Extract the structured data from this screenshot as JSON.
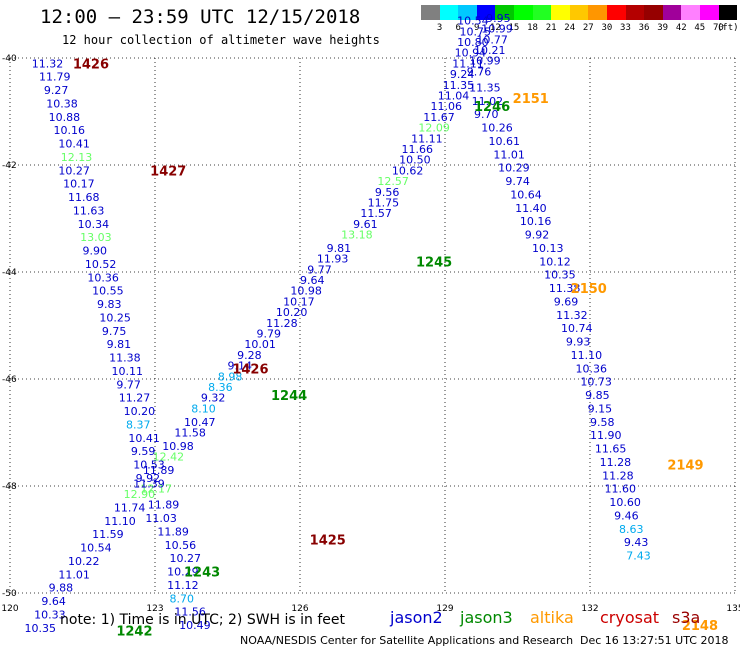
{
  "header": {
    "title": "12:00 – 23:59 UTC 12/15/2018",
    "subtitle": "12 hour collection of altimeter wave heights"
  },
  "scale": {
    "colors": [
      "#808080",
      "#00ffff",
      "#00c8ff",
      "#0000ff",
      "#00c800",
      "#00ff00",
      "#22ff22",
      "#ffff00",
      "#ffc800",
      "#ff9600",
      "#ff0000",
      "#b40000",
      "#960000",
      "#a0009a",
      "#ff80ff",
      "#ff00ff",
      "#000000"
    ],
    "labels": [
      "3",
      "6",
      "9",
      "12",
      "15",
      "18",
      "21",
      "24",
      "27",
      "30",
      "33",
      "36",
      "39",
      "42",
      "45",
      "70",
      "(ft)"
    ]
  },
  "axes": {
    "lon_ticks": [
      "120",
      "123",
      "126",
      "129",
      "132",
      "135"
    ],
    "lat_ticks": [
      "-40",
      "-42",
      "-44",
      "-46",
      "-48",
      "-50"
    ]
  },
  "legend": {
    "note": "note: 1) Time is in UTC; 2) SWH is in feet",
    "satellites": [
      {
        "name": "jason2",
        "color": "#0000cc"
      },
      {
        "name": "jason3",
        "color": "#008800"
      },
      {
        "name": "altika",
        "color": "#ff9900"
      },
      {
        "name": "cryosat",
        "color": "#cc0000"
      },
      {
        "name": "s3a",
        "color": "#990000"
      }
    ]
  },
  "track_colors": {
    "jason2": "#0000cc",
    "jason3": "#008800",
    "altika": "#ff9900",
    "cryosat": "#cc0000",
    "s3a": "#880000",
    "light-green": "#66ff66",
    "cyan": "#00aaee"
  },
  "tracks": {
    "s3a_west": {
      "times": [
        {
          "t": "1426",
          "lat": -40.1
        },
        {
          "t": "1427",
          "lat": -42.1
        },
        {
          "t": "1426",
          "lat": -45.8
        },
        {
          "t": "1425",
          "lat": -49.0
        }
      ],
      "values": [
        {
          "v": "11.32",
          "lon": 120.45,
          "lat": -40.1,
          "c": "jason2"
        },
        {
          "v": "11.79",
          "lon": 120.6,
          "lat": -40.35,
          "c": "jason2"
        },
        {
          "v": "9.27",
          "lon": 120.7,
          "lat": -40.6,
          "c": "jason2"
        },
        {
          "v": "10.38",
          "lon": 120.75,
          "lat": -40.85,
          "c": "jason2"
        },
        {
          "v": "10.88",
          "lon": 120.8,
          "lat": -41.1,
          "c": "jason2"
        },
        {
          "v": "10.16",
          "lon": 120.9,
          "lat": -41.35,
          "c": "jason2"
        },
        {
          "v": "10.41",
          "lon": 121.0,
          "lat": -41.6,
          "c": "jason2"
        },
        {
          "v": "12.13",
          "lon": 121.05,
          "lat": -41.85,
          "c": "light-green"
        },
        {
          "v": "10.27",
          "lon": 121.0,
          "lat": -42.1,
          "c": "jason2"
        },
        {
          "v": "10.17",
          "lon": 121.1,
          "lat": -42.35,
          "c": "jason2"
        },
        {
          "v": "11.68",
          "lon": 121.2,
          "lat": -42.6,
          "c": "jason2"
        },
        {
          "v": "11.63",
          "lon": 121.3,
          "lat": -42.85,
          "c": "jason2"
        },
        {
          "v": "10.34",
          "lon": 121.4,
          "lat": -43.1,
          "c": "jason2"
        },
        {
          "v": "13.03",
          "lon": 121.45,
          "lat": -43.35,
          "c": "light-green"
        },
        {
          "v": "9.90",
          "lon": 121.5,
          "lat": -43.6,
          "c": "jason2"
        },
        {
          "v": "10.52",
          "lon": 121.55,
          "lat": -43.85,
          "c": "jason2"
        },
        {
          "v": "10.36",
          "lon": 121.6,
          "lat": -44.1,
          "c": "jason2"
        },
        {
          "v": "10.55",
          "lon": 121.7,
          "lat": -44.35,
          "c": "jason2"
        },
        {
          "v": "9.83",
          "lon": 121.8,
          "lat": -44.6,
          "c": "jason2"
        },
        {
          "v": "10.25",
          "lon": 121.85,
          "lat": -44.85,
          "c": "jason2"
        },
        {
          "v": "9.75",
          "lon": 121.9,
          "lat": -45.1,
          "c": "jason2"
        },
        {
          "v": "9.81",
          "lon": 122.0,
          "lat": -45.35,
          "c": "jason2"
        },
        {
          "v": "11.38",
          "lon": 122.05,
          "lat": -45.6,
          "c": "jason2"
        },
        {
          "v": "10.11",
          "lon": 122.1,
          "lat": -45.85,
          "c": "jason2"
        },
        {
          "v": "9.77",
          "lon": 122.2,
          "lat": -46.1,
          "c": "jason2"
        },
        {
          "v": "11.27",
          "lon": 122.25,
          "lat": -46.35,
          "c": "jason2"
        },
        {
          "v": "10.20",
          "lon": 122.35,
          "lat": -46.6,
          "c": "jason2"
        },
        {
          "v": "8.37",
          "lon": 122.4,
          "lat": -46.85,
          "c": "cyan"
        },
        {
          "v": "10.41",
          "lon": 122.45,
          "lat": -47.1,
          "c": "jason2"
        },
        {
          "v": "9.59",
          "lon": 122.5,
          "lat": -47.35,
          "c": "jason2"
        },
        {
          "v": "10.53",
          "lon": 122.55,
          "lat": -47.6,
          "c": "jason2"
        },
        {
          "v": "9.92",
          "lon": 122.6,
          "lat": -47.85,
          "c": "jason2"
        },
        {
          "v": "12.17",
          "lon": 122.7,
          "lat": -48.05,
          "c": "light-green"
        },
        {
          "v": "11.89",
          "lon": 122.85,
          "lat": -48.35,
          "c": "jason2"
        },
        {
          "v": "11.03",
          "lon": 122.8,
          "lat": -48.6,
          "c": "jason2"
        },
        {
          "v": "11.89",
          "lon": 123.05,
          "lat": -48.85,
          "c": "jason2"
        },
        {
          "v": "10.56",
          "lon": 123.2,
          "lat": -49.1,
          "c": "jason2"
        },
        {
          "v": "10.27",
          "lon": 123.3,
          "lat": -49.35,
          "c": "jason2"
        },
        {
          "v": "10.29",
          "lon": 123.25,
          "lat": -49.6,
          "c": "jason2"
        },
        {
          "v": "11.12",
          "lon": 123.25,
          "lat": -49.85,
          "c": "jason2"
        },
        {
          "v": "8.70",
          "lon": 123.3,
          "lat": -50.1,
          "c": "cyan"
        },
        {
          "v": "11.56",
          "lon": 123.4,
          "lat": -50.35,
          "c": "jason2"
        },
        {
          "v": "10.49",
          "lon": 123.5,
          "lat": -50.6,
          "c": "jason2"
        }
      ]
    },
    "jason3_asc": {
      "times": [
        {
          "t": "1242",
          "lat": -50.7
        },
        {
          "t": "1243",
          "lat": -49.6
        },
        {
          "t": "1244",
          "lat": -46.3
        },
        {
          "t": "1245",
          "lat": -43.8
        },
        {
          "t": "1246",
          "lat": -40.9
        }
      ],
      "values": [
        {
          "v": "10.35",
          "lon": 120.3,
          "lat": -50.65,
          "c": "jason2"
        },
        {
          "v": "10.33",
          "lon": 120.5,
          "lat": -50.4,
          "c": "jason2"
        },
        {
          "v": "9.64",
          "lon": 120.65,
          "lat": -50.15,
          "c": "jason2"
        },
        {
          "v": "9.88",
          "lon": 120.8,
          "lat": -49.9,
          "c": "jason2"
        },
        {
          "v": "11.01",
          "lon": 121.0,
          "lat": -49.65,
          "c": "jason2"
        },
        {
          "v": "10.22",
          "lon": 121.2,
          "lat": -49.4,
          "c": "jason2"
        },
        {
          "v": "10.54",
          "lon": 121.45,
          "lat": -49.15,
          "c": "jason2"
        },
        {
          "v": "11.59",
          "lon": 121.7,
          "lat": -48.9,
          "c": "jason2"
        },
        {
          "v": "11.10",
          "lon": 121.95,
          "lat": -48.65,
          "c": "jason2"
        },
        {
          "v": "11.74",
          "lon": 122.15,
          "lat": -48.4,
          "c": "jason2"
        },
        {
          "v": "12.90",
          "lon": 122.35,
          "lat": -48.15,
          "c": "light-green"
        },
        {
          "v": "11.39",
          "lon": 122.55,
          "lat": -47.95,
          "c": "jason2"
        },
        {
          "v": "11.89",
          "lon": 122.75,
          "lat": -47.7,
          "c": "jason2"
        },
        {
          "v": "12.42",
          "lon": 122.95,
          "lat": -47.45,
          "c": "light-green"
        },
        {
          "v": "10.98",
          "lon": 123.15,
          "lat": -47.25,
          "c": "jason2"
        },
        {
          "v": "11.58",
          "lon": 123.4,
          "lat": -47.0,
          "c": "jason2"
        },
        {
          "v": "10.47",
          "lon": 123.6,
          "lat": -46.8,
          "c": "jason2"
        },
        {
          "v": "8.10",
          "lon": 123.75,
          "lat": -46.55,
          "c": "cyan"
        },
        {
          "v": "9.32",
          "lon": 123.95,
          "lat": -46.35,
          "c": "jason2"
        },
        {
          "v": "8.36",
          "lon": 124.1,
          "lat": -46.15,
          "c": "cyan"
        },
        {
          "v": "8.98",
          "lon": 124.3,
          "lat": -45.95,
          "c": "cyan"
        },
        {
          "v": "9.14",
          "lon": 124.5,
          "lat": -45.75,
          "c": "jason2"
        },
        {
          "v": "9.28",
          "lon": 124.7,
          "lat": -45.55,
          "c": "jason2"
        },
        {
          "v": "10.01",
          "lon": 124.85,
          "lat": -45.35,
          "c": "jason2"
        },
        {
          "v": "9.79",
          "lon": 125.1,
          "lat": -45.15,
          "c": "jason2"
        },
        {
          "v": "11.28",
          "lon": 125.3,
          "lat": -44.95,
          "c": "jason2"
        },
        {
          "v": "10.20",
          "lon": 125.5,
          "lat": -44.75,
          "c": "jason2"
        },
        {
          "v": "10.17",
          "lon": 125.65,
          "lat": -44.55,
          "c": "jason2"
        },
        {
          "v": "10.98",
          "lon": 125.8,
          "lat": -44.35,
          "c": "jason2"
        },
        {
          "v": "9.64",
          "lon": 126.0,
          "lat": -44.15,
          "c": "jason2"
        },
        {
          "v": "9.77",
          "lon": 126.15,
          "lat": -43.95,
          "c": "jason2"
        },
        {
          "v": "11.93",
          "lon": 126.35,
          "lat": -43.75,
          "c": "jason2"
        },
        {
          "v": "9.81",
          "lon": 126.55,
          "lat": -43.55,
          "c": "jason2"
        },
        {
          "v": "13.18",
          "lon": 126.85,
          "lat": -43.3,
          "c": "light-green"
        },
        {
          "v": "9.61",
          "lon": 127.1,
          "lat": -43.1,
          "c": "jason2"
        },
        {
          "v": "11.57",
          "lon": 127.25,
          "lat": -42.9,
          "c": "jason2"
        },
        {
          "v": "11.75",
          "lon": 127.4,
          "lat": -42.7,
          "c": "jason2"
        },
        {
          "v": "9.56",
          "lon": 127.55,
          "lat": -42.5,
          "c": "jason2"
        },
        {
          "v": "12.57",
          "lon": 127.6,
          "lat": -42.3,
          "c": "light-green"
        },
        {
          "v": "10.62",
          "lon": 127.9,
          "lat": -42.1,
          "c": "jason2"
        },
        {
          "v": "10.50",
          "lon": 128.05,
          "lat": -41.9,
          "c": "jason2"
        },
        {
          "v": "11.66",
          "lon": 128.1,
          "lat": -41.7,
          "c": "jason2"
        },
        {
          "v": "11.11",
          "lon": 128.3,
          "lat": -41.5,
          "c": "jason2"
        },
        {
          "v": "12.09",
          "lon": 128.45,
          "lat": -41.3,
          "c": "light-green"
        },
        {
          "v": "11.67",
          "lon": 128.55,
          "lat": -41.1,
          "c": "jason2"
        },
        {
          "v": "11.06",
          "lon": 128.7,
          "lat": -40.9,
          "c": "jason2"
        },
        {
          "v": "11.04",
          "lon": 128.85,
          "lat": -40.7,
          "c": "jason2"
        },
        {
          "v": "11.35",
          "lon": 128.95,
          "lat": -40.5,
          "c": "jason2"
        },
        {
          "v": "9.24",
          "lon": 129.1,
          "lat": -40.3,
          "c": "jason2"
        },
        {
          "v": "11.11",
          "lon": 129.15,
          "lat": -40.1,
          "c": "jason2"
        },
        {
          "v": "10.94",
          "lon": 129.2,
          "lat": -39.9,
          "c": "jason2"
        },
        {
          "v": "10.80",
          "lon": 129.25,
          "lat": -39.7,
          "c": "jason2"
        },
        {
          "v": "10.75",
          "lon": 129.3,
          "lat": -39.5,
          "c": "jason2"
        },
        {
          "v": "10.54",
          "lon": 129.25,
          "lat": -39.3,
          "c": "jason2"
        }
      ]
    },
    "altika_desc": {
      "times": [
        {
          "t": "2151",
          "lat": -40.75
        },
        {
          "t": "2150",
          "lat": -44.3
        },
        {
          "t": "2149",
          "lat": -47.6
        },
        {
          "t": "2148",
          "lat": -50.6
        }
      ],
      "values": [
        {
          "v": "9.95",
          "lon": 129.85,
          "lat": -39.25,
          "c": "jason2"
        },
        {
          "v": "10.99",
          "lon": 129.75,
          "lat": -39.45,
          "c": "jason2"
        },
        {
          "v": "10.77",
          "lon": 129.65,
          "lat": -39.65,
          "c": "jason2"
        },
        {
          "v": "10.21",
          "lon": 129.6,
          "lat": -39.85,
          "c": "jason2"
        },
        {
          "v": "10.99",
          "lon": 129.5,
          "lat": -40.05,
          "c": "jason2"
        },
        {
          "v": "9.76",
          "lon": 129.45,
          "lat": -40.25,
          "c": "jason2"
        },
        {
          "v": "11.35",
          "lon": 129.5,
          "lat": -40.55,
          "c": "jason2"
        },
        {
          "v": "11.02",
          "lon": 129.55,
          "lat": -40.8,
          "c": "jason2"
        },
        {
          "v": "9.70",
          "lon": 129.6,
          "lat": -41.05,
          "c": "jason2"
        },
        {
          "v": "10.26",
          "lon": 129.75,
          "lat": -41.3,
          "c": "jason2"
        },
        {
          "v": "10.61",
          "lon": 129.9,
          "lat": -41.55,
          "c": "jason2"
        },
        {
          "v": "11.01",
          "lon": 130.0,
          "lat": -41.8,
          "c": "jason2"
        },
        {
          "v": "10.29",
          "lon": 130.1,
          "lat": -42.05,
          "c": "jason2"
        },
        {
          "v": "9.74",
          "lon": 130.25,
          "lat": -42.3,
          "c": "jason2"
        },
        {
          "v": "10.64",
          "lon": 130.35,
          "lat": -42.55,
          "c": "jason2"
        },
        {
          "v": "11.40",
          "lon": 130.45,
          "lat": -42.8,
          "c": "jason2"
        },
        {
          "v": "10.16",
          "lon": 130.55,
          "lat": -43.05,
          "c": "jason2"
        },
        {
          "v": "9.92",
          "lon": 130.65,
          "lat": -43.3,
          "c": "jason2"
        },
        {
          "v": "10.13",
          "lon": 130.8,
          "lat": -43.55,
          "c": "jason2"
        },
        {
          "v": "10.12",
          "lon": 130.95,
          "lat": -43.8,
          "c": "jason2"
        },
        {
          "v": "10.35",
          "lon": 131.05,
          "lat": -44.05,
          "c": "jason2"
        },
        {
          "v": "11.38",
          "lon": 131.15,
          "lat": -44.3,
          "c": "jason2"
        },
        {
          "v": "9.69",
          "lon": 131.25,
          "lat": -44.55,
          "c": "jason2"
        },
        {
          "v": "11.32",
          "lon": 131.3,
          "lat": -44.8,
          "c": "jason2"
        },
        {
          "v": "10.74",
          "lon": 131.4,
          "lat": -45.05,
          "c": "jason2"
        },
        {
          "v": "9.93",
          "lon": 131.5,
          "lat": -45.3,
          "c": "jason2"
        },
        {
          "v": "11.10",
          "lon": 131.6,
          "lat": -45.55,
          "c": "jason2"
        },
        {
          "v": "10.36",
          "lon": 131.7,
          "lat": -45.8,
          "c": "jason2"
        },
        {
          "v": "10.73",
          "lon": 131.8,
          "lat": -46.05,
          "c": "jason2"
        },
        {
          "v": "9.85",
          "lon": 131.9,
          "lat": -46.3,
          "c": "jason2"
        },
        {
          "v": "9.15",
          "lon": 131.95,
          "lat": -46.55,
          "c": "jason2"
        },
        {
          "v": "9.58",
          "lon": 132.0,
          "lat": -46.8,
          "c": "jason2"
        },
        {
          "v": "11.90",
          "lon": 132.0,
          "lat": -47.05,
          "c": "jason2"
        },
        {
          "v": "11.65",
          "lon": 132.1,
          "lat": -47.3,
          "c": "jason2"
        },
        {
          "v": "11.28",
          "lon": 132.2,
          "lat": -47.55,
          "c": "jason2"
        },
        {
          "v": "11.28",
          "lon": 132.25,
          "lat": -47.8,
          "c": "jason2"
        },
        {
          "v": "11.60",
          "lon": 132.3,
          "lat": -48.05,
          "c": "jason2"
        },
        {
          "v": "10.60",
          "lon": 132.4,
          "lat": -48.3,
          "c": "jason2"
        },
        {
          "v": "9.46",
          "lon": 132.5,
          "lat": -48.55,
          "c": "jason2"
        },
        {
          "v": "8.63",
          "lon": 132.6,
          "lat": -48.8,
          "c": "cyan"
        },
        {
          "v": "9.43",
          "lon": 132.7,
          "lat": -49.05,
          "c": "jason2"
        },
        {
          "v": "7.43",
          "lon": 132.75,
          "lat": -49.3,
          "c": "cyan"
        }
      ]
    }
  },
  "footer": {
    "credit": "NOAA/NESDIS Center for Satellite Applications and Research",
    "timestamp": "Dec 16 13:27:51 UTC 2018"
  }
}
